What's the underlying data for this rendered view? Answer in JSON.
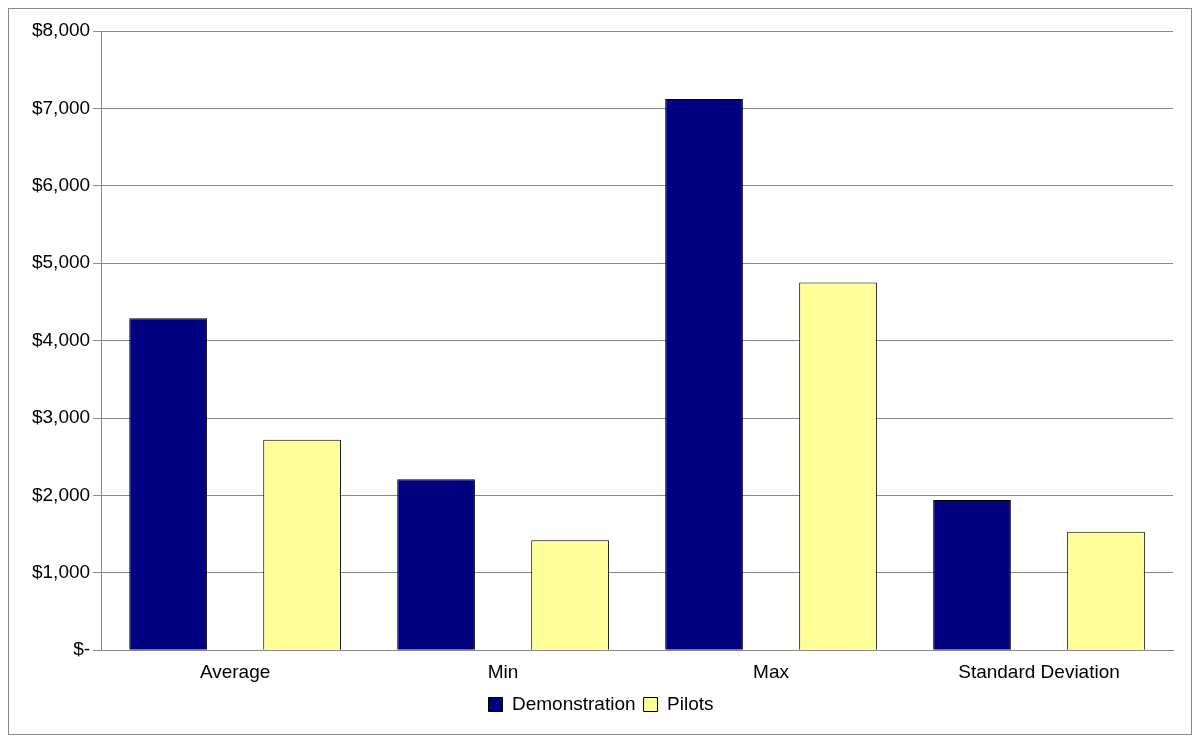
{
  "chart_data": {
    "type": "bar",
    "categories": [
      "Average",
      "Min",
      "Max",
      "Standard Deviation"
    ],
    "series": [
      {
        "name": "Demonstration",
        "color": "#000080",
        "values": [
          4290,
          2210,
          7120,
          1940
        ]
      },
      {
        "name": "Pilots",
        "color": "#ffff99",
        "values": [
          2720,
          1420,
          4750,
          1530
        ]
      }
    ],
    "ylim": [
      0,
      8000
    ],
    "yticks": [
      {
        "value": 0,
        "label": "$-"
      },
      {
        "value": 1000,
        "label": "$1,000"
      },
      {
        "value": 2000,
        "label": "$2,000"
      },
      {
        "value": 3000,
        "label": "$3,000"
      },
      {
        "value": 4000,
        "label": "$4,000"
      },
      {
        "value": 5000,
        "label": "$5,000"
      },
      {
        "value": 6000,
        "label": "$6,000"
      },
      {
        "value": 7000,
        "label": "$7,000"
      },
      {
        "value": 8000,
        "label": "$8,000"
      }
    ],
    "grid": "y",
    "legend": "bottom"
  }
}
